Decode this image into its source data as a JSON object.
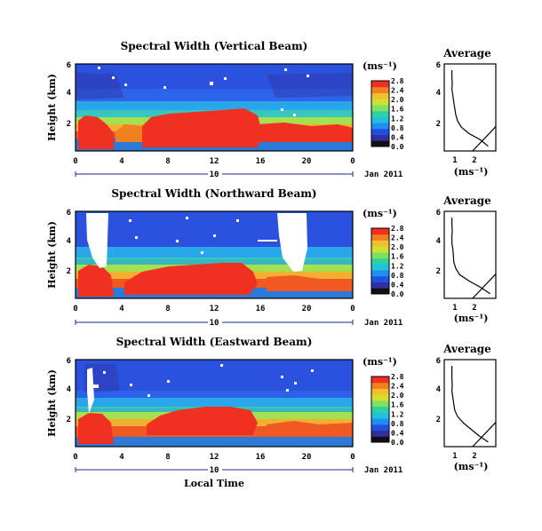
{
  "chart_data": [
    {
      "type": "heatmap",
      "title": "Spectral Width (Vertical Beam)",
      "ylabel": "Height (km)",
      "yticks": [
        "2",
        "4",
        "6"
      ],
      "xticks": [
        "0",
        "4",
        "8",
        "12",
        "16",
        "20",
        "0"
      ],
      "date_day": "10",
      "date_label": "Jan 2011",
      "xlim": [
        0,
        24
      ],
      "ylim": [
        0.5,
        6
      ],
      "colorbar": {
        "unit": "(ms⁻¹)",
        "ticks": [
          "0.0",
          "0.4",
          "0.8",
          "1.2",
          "1.6",
          "2.0",
          "2.4",
          "2.8"
        ],
        "colors": [
          "#101010",
          "#3030a0",
          "#2050e0",
          "#2090f0",
          "#20c0e0",
          "#30d0a0",
          "#80e060",
          "#d0e030",
          "#f0c030",
          "#f08020",
          "#f03020"
        ]
      },
      "profile": {
        "title": "Average",
        "xlabel": "(ms⁻¹)",
        "xticks": [
          "1",
          "2"
        ],
        "yticks": [
          "2",
          "4",
          "6"
        ],
        "x": [
          2.6,
          2.2,
          1.6,
          1.2,
          1.0,
          0.9,
          0.85,
          0.8,
          0.75,
          0.7,
          0.72,
          0.7,
          0.7
        ],
        "y": [
          0.8,
          1.2,
          1.6,
          2.0,
          2.4,
          2.8,
          3.2,
          3.6,
          4.0,
          4.4,
          4.8,
          5.2,
          5.6
        ]
      }
    },
    {
      "type": "heatmap",
      "title": "Spectral Width (Northward Beam)",
      "ylabel": "Height (km)",
      "yticks": [
        "2",
        "4",
        "6"
      ],
      "xticks": [
        "0",
        "4",
        "8",
        "12",
        "16",
        "20",
        "0"
      ],
      "date_day": "10",
      "date_label": "Jan 2011",
      "xlim": [
        0,
        24
      ],
      "ylim": [
        0.5,
        6
      ],
      "colorbar": {
        "unit": "(ms⁻¹)",
        "ticks": [
          "0.0",
          "0.4",
          "0.8",
          "1.2",
          "1.6",
          "2.0",
          "2.4",
          "2.8"
        ],
        "colors": [
          "#101010",
          "#3030a0",
          "#2050e0",
          "#2090f0",
          "#20c0e0",
          "#30d0a0",
          "#80e060",
          "#d0e030",
          "#f0c030",
          "#f08020",
          "#f03020"
        ]
      },
      "profile": {
        "title": "Average",
        "xlabel": "(ms⁻¹)",
        "xticks": [
          "1",
          "2"
        ],
        "yticks": [
          "2",
          "4",
          "6"
        ],
        "x": [
          2.7,
          2.2,
          1.6,
          1.1,
          0.9,
          0.8,
          0.78,
          0.75,
          0.7,
          0.7,
          0.72,
          0.7,
          0.7
        ],
        "y": [
          0.8,
          1.2,
          1.6,
          2.0,
          2.4,
          2.8,
          3.2,
          3.6,
          4.0,
          4.4,
          4.8,
          5.2,
          5.6
        ]
      }
    },
    {
      "type": "heatmap",
      "title": "Spectral Width (Eastward Beam)",
      "ylabel": "Height (km)",
      "yticks": [
        "2",
        "4",
        "6"
      ],
      "xticks": [
        "0",
        "4",
        "8",
        "12",
        "16",
        "20",
        "0"
      ],
      "date_day": "10",
      "date_label": "Jan 2011",
      "xlabel": "Local Time",
      "xlim": [
        0,
        24
      ],
      "ylim": [
        0.5,
        6
      ],
      "colorbar": {
        "unit": "(ms⁻¹)",
        "ticks": [
          "0.0",
          "0.4",
          "0.8",
          "1.2",
          "1.6",
          "2.0",
          "2.4",
          "2.8"
        ],
        "colors": [
          "#101010",
          "#3030a0",
          "#2050e0",
          "#2090f0",
          "#20c0e0",
          "#30d0a0",
          "#80e060",
          "#d0e030",
          "#f0c030",
          "#f08020",
          "#f03020"
        ]
      },
      "profile": {
        "title": "Average",
        "xlabel": "(ms⁻¹)",
        "xticks": [
          "1",
          "2"
        ],
        "yticks": [
          "2",
          "4",
          "6"
        ],
        "x": [
          2.6,
          2.1,
          1.7,
          1.3,
          1.0,
          0.85,
          0.8,
          0.75,
          0.7,
          0.72,
          0.7,
          0.7,
          0.7
        ],
        "y": [
          0.8,
          1.2,
          1.6,
          2.0,
          2.4,
          2.8,
          3.2,
          3.6,
          4.0,
          4.4,
          4.8,
          5.2,
          5.6
        ]
      }
    }
  ]
}
